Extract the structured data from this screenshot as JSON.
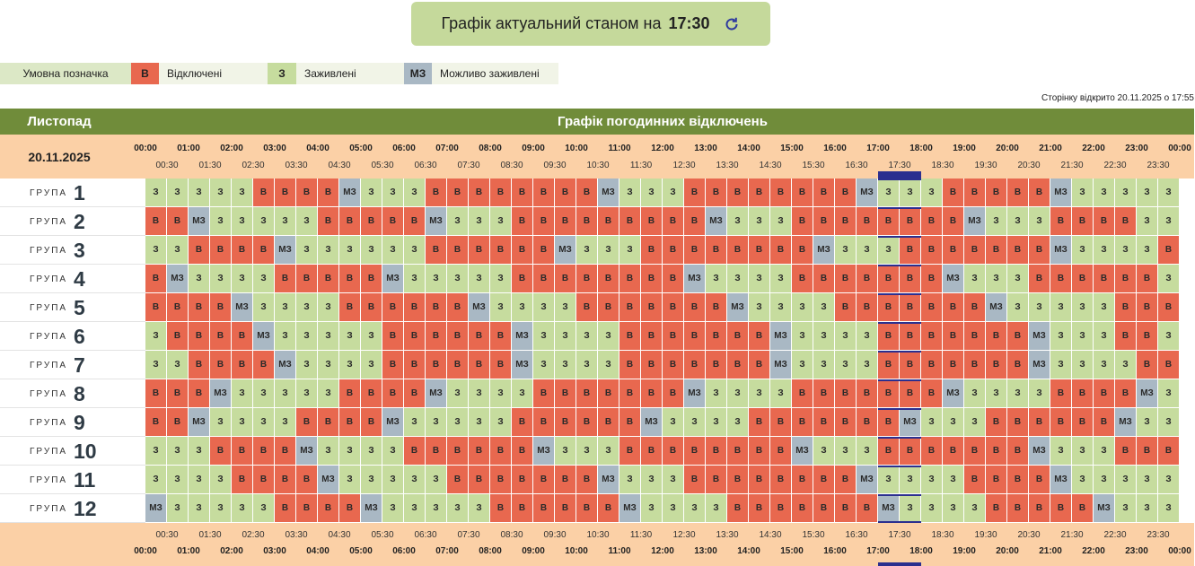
{
  "header": {
    "title": "Графік актуальний станом на",
    "time": "17:30"
  },
  "legend": {
    "label": "Умовна позначка",
    "items": [
      {
        "code": "В",
        "text": "Відключені",
        "color": "#e8684f"
      },
      {
        "code": "З",
        "text": "Заживлені",
        "color": "#c6dc9e"
      },
      {
        "code": "МЗ",
        "text": "Можливо заживлені",
        "color": "#a9b8c4"
      }
    ]
  },
  "opened": "Сторінку відкрито 20.11.2025 о 17:55",
  "table": {
    "month": "Листопад",
    "title": "Графік погодинних відключень",
    "date": "20.11.2025",
    "hours": [
      "00:00",
      "01:00",
      "02:00",
      "03:00",
      "04:00",
      "05:00",
      "06:00",
      "07:00",
      "08:00",
      "09:00",
      "10:00",
      "11:00",
      "12:00",
      "13:00",
      "14:00",
      "15:00",
      "16:00",
      "17:00",
      "18:00",
      "19:00",
      "20:00",
      "21:00",
      "22:00",
      "23:00",
      "00:00"
    ],
    "half_hours": [
      "00:30",
      "01:30",
      "02:30",
      "03:30",
      "04:30",
      "05:30",
      "06:30",
      "07:30",
      "08:30",
      "09:30",
      "10:30",
      "11:30",
      "12:30",
      "13:30",
      "14:30",
      "15:30",
      "16:30",
      "17:30",
      "18:30",
      "19:30",
      "20:30",
      "21:30",
      "22:30",
      "23:30"
    ],
    "group_label": "ГРУПА",
    "groups": [
      {
        "number": 1,
        "cells": [
          "З",
          "З",
          "З",
          "З",
          "З",
          "В",
          "В",
          "В",
          "В",
          "МЗ",
          "З",
          "З",
          "З",
          "В",
          "В",
          "В",
          "В",
          "В",
          "В",
          "В",
          "В",
          "МЗ",
          "З",
          "З",
          "З",
          "В",
          "В",
          "В",
          "В",
          "В",
          "В",
          "В",
          "В",
          "МЗ",
          "З",
          "З",
          "З",
          "В",
          "В",
          "В",
          "В",
          "В",
          "МЗ",
          "З",
          "З",
          "З",
          "З",
          "З"
        ]
      },
      {
        "number": 2,
        "cells": [
          "В",
          "В",
          "МЗ",
          "З",
          "З",
          "З",
          "З",
          "З",
          "В",
          "В",
          "В",
          "В",
          "В",
          "МЗ",
          "З",
          "З",
          "З",
          "В",
          "В",
          "В",
          "В",
          "В",
          "В",
          "В",
          "В",
          "В",
          "МЗ",
          "З",
          "З",
          "З",
          "В",
          "В",
          "В",
          "В",
          "В",
          "В",
          "В",
          "В",
          "МЗ",
          "З",
          "З",
          "З",
          "В",
          "В",
          "В",
          "В",
          "З",
          "З"
        ]
      },
      {
        "number": 3,
        "cells": [
          "З",
          "З",
          "В",
          "В",
          "В",
          "В",
          "МЗ",
          "З",
          "З",
          "З",
          "З",
          "З",
          "З",
          "В",
          "В",
          "В",
          "В",
          "В",
          "В",
          "МЗ",
          "З",
          "З",
          "З",
          "В",
          "В",
          "В",
          "В",
          "В",
          "В",
          "В",
          "В",
          "МЗ",
          "З",
          "З",
          "З",
          "В",
          "В",
          "В",
          "В",
          "В",
          "В",
          "В",
          "МЗ",
          "З",
          "З",
          "З",
          "З",
          "В"
        ]
      },
      {
        "number": 4,
        "cells": [
          "В",
          "МЗ",
          "З",
          "З",
          "З",
          "З",
          "В",
          "В",
          "В",
          "В",
          "В",
          "МЗ",
          "З",
          "З",
          "З",
          "З",
          "З",
          "В",
          "В",
          "В",
          "В",
          "В",
          "В",
          "В",
          "В",
          "МЗ",
          "З",
          "З",
          "З",
          "З",
          "В",
          "В",
          "В",
          "В",
          "В",
          "В",
          "В",
          "МЗ",
          "З",
          "З",
          "З",
          "В",
          "В",
          "В",
          "В",
          "В",
          "В",
          "З"
        ]
      },
      {
        "number": 5,
        "cells": [
          "В",
          "В",
          "В",
          "В",
          "МЗ",
          "З",
          "З",
          "З",
          "З",
          "В",
          "В",
          "В",
          "В",
          "В",
          "В",
          "МЗ",
          "З",
          "З",
          "З",
          "З",
          "В",
          "В",
          "В",
          "В",
          "В",
          "В",
          "В",
          "МЗ",
          "З",
          "З",
          "З",
          "З",
          "В",
          "В",
          "В",
          "В",
          "В",
          "В",
          "В",
          "МЗ",
          "З",
          "З",
          "З",
          "З",
          "З",
          "В",
          "В",
          "В"
        ]
      },
      {
        "number": 6,
        "cells": [
          "З",
          "В",
          "В",
          "В",
          "В",
          "МЗ",
          "З",
          "З",
          "З",
          "З",
          "З",
          "В",
          "В",
          "В",
          "В",
          "В",
          "В",
          "МЗ",
          "З",
          "З",
          "З",
          "З",
          "В",
          "В",
          "В",
          "В",
          "В",
          "В",
          "В",
          "МЗ",
          "З",
          "З",
          "З",
          "З",
          "В",
          "В",
          "В",
          "В",
          "В",
          "В",
          "В",
          "МЗ",
          "З",
          "З",
          "З",
          "В",
          "В",
          "З"
        ]
      },
      {
        "number": 7,
        "cells": [
          "З",
          "З",
          "В",
          "В",
          "В",
          "В",
          "МЗ",
          "З",
          "З",
          "З",
          "З",
          "В",
          "В",
          "В",
          "В",
          "В",
          "В",
          "МЗ",
          "З",
          "З",
          "З",
          "З",
          "В",
          "В",
          "В",
          "В",
          "В",
          "В",
          "В",
          "МЗ",
          "З",
          "З",
          "З",
          "З",
          "В",
          "В",
          "В",
          "В",
          "В",
          "В",
          "В",
          "МЗ",
          "З",
          "З",
          "З",
          "З",
          "В",
          "В"
        ]
      },
      {
        "number": 8,
        "cells": [
          "В",
          "В",
          "В",
          "МЗ",
          "З",
          "З",
          "З",
          "З",
          "З",
          "В",
          "В",
          "В",
          "В",
          "МЗ",
          "З",
          "З",
          "З",
          "З",
          "В",
          "В",
          "В",
          "В",
          "В",
          "В",
          "В",
          "МЗ",
          "З",
          "З",
          "З",
          "З",
          "В",
          "В",
          "В",
          "В",
          "В",
          "В",
          "В",
          "МЗ",
          "З",
          "З",
          "З",
          "З",
          "В",
          "В",
          "В",
          "В",
          "МЗ",
          "З"
        ]
      },
      {
        "number": 9,
        "cells": [
          "В",
          "В",
          "МЗ",
          "З",
          "З",
          "З",
          "З",
          "В",
          "В",
          "В",
          "В",
          "МЗ",
          "З",
          "З",
          "З",
          "З",
          "З",
          "В",
          "В",
          "В",
          "В",
          "В",
          "В",
          "МЗ",
          "З",
          "З",
          "З",
          "З",
          "В",
          "В",
          "В",
          "В",
          "В",
          "В",
          "В",
          "МЗ",
          "З",
          "З",
          "З",
          "В",
          "В",
          "В",
          "В",
          "В",
          "В",
          "МЗ",
          "З",
          "З"
        ]
      },
      {
        "number": 10,
        "cells": [
          "З",
          "З",
          "З",
          "В",
          "В",
          "В",
          "В",
          "МЗ",
          "З",
          "З",
          "З",
          "З",
          "В",
          "В",
          "В",
          "В",
          "В",
          "В",
          "МЗ",
          "З",
          "З",
          "З",
          "В",
          "В",
          "В",
          "В",
          "В",
          "В",
          "В",
          "В",
          "МЗ",
          "З",
          "З",
          "З",
          "В",
          "В",
          "В",
          "В",
          "В",
          "В",
          "В",
          "МЗ",
          "З",
          "З",
          "З",
          "В",
          "В",
          "В"
        ]
      },
      {
        "number": 11,
        "cells": [
          "З",
          "З",
          "З",
          "З",
          "В",
          "В",
          "В",
          "В",
          "МЗ",
          "З",
          "З",
          "З",
          "З",
          "З",
          "В",
          "В",
          "В",
          "В",
          "В",
          "В",
          "В",
          "МЗ",
          "З",
          "З",
          "З",
          "В",
          "В",
          "В",
          "В",
          "В",
          "В",
          "В",
          "В",
          "МЗ",
          "З",
          "З",
          "З",
          "З",
          "В",
          "В",
          "В",
          "В",
          "МЗ",
          "З",
          "З",
          "З",
          "З",
          "З"
        ]
      },
      {
        "number": 12,
        "cells": [
          "МЗ",
          "З",
          "З",
          "З",
          "З",
          "З",
          "В",
          "В",
          "В",
          "В",
          "МЗ",
          "З",
          "З",
          "З",
          "З",
          "З",
          "В",
          "В",
          "В",
          "В",
          "В",
          "В",
          "МЗ",
          "З",
          "З",
          "З",
          "З",
          "В",
          "В",
          "В",
          "В",
          "В",
          "В",
          "В",
          "МЗ",
          "З",
          "З",
          "З",
          "З",
          "В",
          "В",
          "В",
          "В",
          "В",
          "МЗ",
          "З",
          "З",
          "З"
        ]
      }
    ]
  }
}
